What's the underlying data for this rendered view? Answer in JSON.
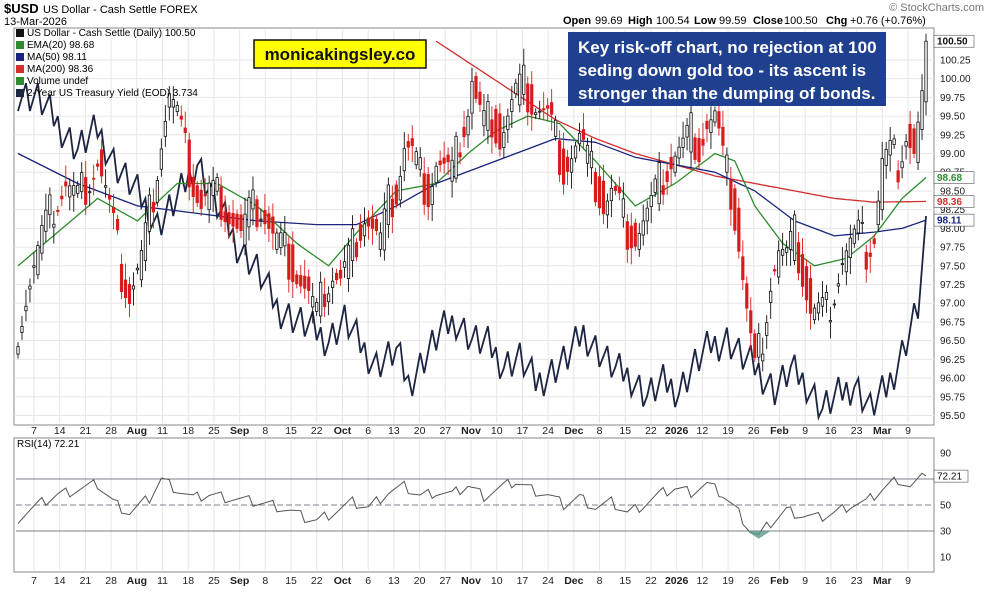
{
  "header": {
    "symbol": "$USD",
    "name": "US Dollar - Cash Settle FOREX",
    "date": "13-Mar-2026",
    "open_label": "Open",
    "open": "99.69",
    "high_label": "High",
    "high": "100.54",
    "low_label": "Low",
    "low": "99.59",
    "close_label": "Close",
    "close": "100.50",
    "chg_label": "Chg",
    "chg": "+0.76 (+0.76%)",
    "watermark": "© StockCharts.com"
  },
  "legend": {
    "price": "US Dollar - Cash Settle (Daily) 100.50",
    "ema20": "EMA(20) 98.68",
    "ma50": "MA(50) 98.11",
    "ma200": "MA(200) 98.36",
    "volume": "Volume undef",
    "yield": "2-Year US Treasury Yield (EOD) 3.734",
    "rsi": "RSI(14) 72.21"
  },
  "annotation": {
    "brand": "monicakingsley.co",
    "lines": [
      "Key risk-off chart, no rejection at 100",
      "seding down gold too - its ascent is",
      "stronger than the dumping of bonds."
    ]
  },
  "colors": {
    "up": "#111111",
    "down": "#d81b1b",
    "ema20": "#2e8b2e",
    "ma50": "#1a237e",
    "ma200": "#d32f2f",
    "yield": "#1c2541",
    "rsi": "#555555",
    "brand_bg": "#ffff00",
    "annotation_bg": "#1f3f8f",
    "grid": "#e6e6e6"
  },
  "chart_data": [
    {
      "type": "candlestick",
      "title": "$USD US Dollar - Cash Settle FOREX",
      "ylim": [
        95.4,
        100.65
      ],
      "yticks": [
        "95.50",
        "95.75",
        "96.00",
        "96.25",
        "96.50",
        "96.75",
        "97.00",
        "97.25",
        "97.50",
        "97.75",
        "98.00",
        "98.25",
        "98.50",
        "98.75",
        "99.00",
        "99.25",
        "99.50",
        "99.75",
        "100.00",
        "100.25"
      ],
      "xticks": [
        "7",
        "14",
        "21",
        "28",
        "Aug",
        "11",
        "18",
        "25",
        "Sep",
        "8",
        "15",
        "22",
        "Oct",
        "6",
        "13",
        "20",
        "27",
        "Nov",
        "10",
        "17",
        "24",
        "Dec",
        "8",
        "15",
        "22",
        "2026",
        "12",
        "19",
        "26",
        "Feb",
        "9",
        "16",
        "23",
        "Mar",
        "9"
      ],
      "price_points": [
        [
          0,
          96.7
        ],
        [
          3,
          97.3
        ],
        [
          6,
          97.9
        ],
        [
          9,
          98.3
        ],
        [
          12,
          98.6
        ],
        [
          15,
          98.4
        ],
        [
          18,
          98.7
        ],
        [
          20,
          98.9
        ],
        [
          22,
          98.5
        ],
        [
          24,
          98.0
        ],
        [
          26,
          97.4
        ],
        [
          28,
          97.1
        ],
        [
          31,
          97.6
        ],
        [
          34,
          98.5
        ],
        [
          36,
          99.2
        ],
        [
          38,
          99.8
        ],
        [
          40,
          99.5
        ],
        [
          42,
          99.0
        ],
        [
          44,
          98.6
        ],
        [
          46,
          98.3
        ],
        [
          48,
          98.5
        ],
        [
          51,
          98.4
        ],
        [
          54,
          98.1
        ],
        [
          56,
          97.9
        ],
        [
          58,
          98.2
        ],
        [
          61,
          98.3
        ],
        [
          64,
          97.9
        ],
        [
          67,
          97.7
        ],
        [
          69,
          97.5
        ],
        [
          71,
          97.3
        ],
        [
          73,
          97.1
        ],
        [
          75,
          96.8
        ],
        [
          77,
          97.2
        ],
        [
          79,
          97.4
        ],
        [
          81,
          97.3
        ],
        [
          83,
          97.6
        ],
        [
          85,
          97.9
        ],
        [
          87,
          98.2
        ],
        [
          89,
          98.0
        ],
        [
          91,
          97.8
        ],
        [
          93,
          98.3
        ],
        [
          95,
          98.5
        ],
        [
          97,
          99.1
        ],
        [
          99,
          99.0
        ],
        [
          101,
          98.7
        ],
        [
          103,
          98.5
        ],
        [
          105,
          98.9
        ],
        [
          107,
          98.8
        ],
        [
          109,
          98.7
        ],
        [
          111,
          99.2
        ],
        [
          113,
          99.6
        ],
        [
          114,
          100.0
        ],
        [
          115,
          99.7
        ],
        [
          117,
          99.4
        ],
        [
          119,
          99.5
        ],
        [
          121,
          99.2
        ],
        [
          123,
          99.5
        ],
        [
          125,
          99.8
        ],
        [
          127,
          99.9
        ],
        [
          129,
          99.7
        ],
        [
          131,
          99.6
        ],
        [
          133,
          99.5
        ],
        [
          135,
          99.2
        ],
        [
          137,
          98.8
        ],
        [
          139,
          99.0
        ],
        [
          141,
          99.2
        ],
        [
          143,
          98.9
        ],
        [
          145,
          98.6
        ],
        [
          147,
          98.3
        ],
        [
          149,
          98.5
        ],
        [
          151,
          98.3
        ],
        [
          153,
          98.0
        ],
        [
          155,
          97.9
        ],
        [
          157,
          98.1
        ],
        [
          159,
          98.3
        ],
        [
          161,
          98.6
        ],
        [
          163,
          98.8
        ],
        [
          165,
          99.0
        ],
        [
          167,
          99.1
        ],
        [
          169,
          99.3
        ],
        [
          171,
          99.1
        ],
        [
          173,
          99.4
        ],
        [
          175,
          99.5
        ],
        [
          177,
          98.9
        ],
        [
          179,
          98.5
        ],
        [
          181,
          97.8
        ],
        [
          183,
          96.9
        ],
        [
          185,
          96.1
        ],
        [
          187,
          96.6
        ],
        [
          189,
          97.3
        ],
        [
          191,
          97.7
        ],
        [
          193,
          97.6
        ],
        [
          195,
          97.9
        ],
        [
          197,
          97.4
        ],
        [
          199,
          96.9
        ],
        [
          201,
          96.9
        ],
        [
          203,
          96.9
        ],
        [
          205,
          97.2
        ],
        [
          207,
          97.6
        ],
        [
          209,
          97.8
        ],
        [
          211,
          97.9
        ],
        [
          213,
          97.7
        ],
        [
          215,
          97.9
        ],
        [
          217,
          98.9
        ],
        [
          219,
          99.0
        ],
        [
          221,
          98.9
        ],
        [
          223,
          99.3
        ],
        [
          225,
          99.0
        ],
        [
          227,
          99.7
        ],
        [
          228,
          100.5
        ]
      ],
      "ema20": [
        [
          0,
          97.5
        ],
        [
          20,
          98.4
        ],
        [
          30,
          98.1
        ],
        [
          40,
          98.6
        ],
        [
          50,
          98.6
        ],
        [
          60,
          98.3
        ],
        [
          70,
          97.8
        ],
        [
          78,
          97.5
        ],
        [
          86,
          98.0
        ],
        [
          95,
          98.5
        ],
        [
          105,
          98.6
        ],
        [
          113,
          99.0
        ],
        [
          120,
          99.3
        ],
        [
          128,
          99.5
        ],
        [
          136,
          99.4
        ],
        [
          145,
          98.9
        ],
        [
          155,
          98.3
        ],
        [
          165,
          98.6
        ],
        [
          175,
          99.0
        ],
        [
          180,
          98.9
        ],
        [
          185,
          98.3
        ],
        [
          192,
          97.8
        ],
        [
          200,
          97.5
        ],
        [
          208,
          97.6
        ],
        [
          215,
          97.9
        ],
        [
          222,
          98.4
        ],
        [
          228,
          98.68
        ]
      ],
      "ma50": [
        [
          0,
          99.0
        ],
        [
          15,
          98.6
        ],
        [
          30,
          98.3
        ],
        [
          45,
          98.2
        ],
        [
          60,
          98.1
        ],
        [
          75,
          98.05
        ],
        [
          85,
          98.05
        ],
        [
          95,
          98.3
        ],
        [
          105,
          98.6
        ],
        [
          115,
          98.8
        ],
        [
          125,
          99.0
        ],
        [
          135,
          99.2
        ],
        [
          145,
          99.15
        ],
        [
          155,
          98.95
        ],
        [
          165,
          98.85
        ],
        [
          175,
          98.75
        ],
        [
          185,
          98.5
        ],
        [
          195,
          98.1
        ],
        [
          205,
          97.9
        ],
        [
          215,
          97.95
        ],
        [
          222,
          98.0
        ],
        [
          228,
          98.11
        ]
      ],
      "ma200": [
        [
          105,
          100.5
        ],
        [
          115,
          100.15
        ],
        [
          125,
          99.8
        ],
        [
          135,
          99.45
        ],
        [
          145,
          99.2
        ],
        [
          155,
          99.0
        ],
        [
          165,
          98.85
        ],
        [
          175,
          98.7
        ],
        [
          185,
          98.6
        ],
        [
          195,
          98.5
        ],
        [
          205,
          98.4
        ],
        [
          215,
          98.35
        ],
        [
          228,
          98.36
        ]
      ],
      "yield": [
        [
          0,
          3.96
        ],
        [
          5,
          3.95
        ],
        [
          10,
          3.91
        ],
        [
          15,
          3.87
        ],
        [
          20,
          3.9
        ],
        [
          25,
          3.84
        ],
        [
          30,
          3.8
        ],
        [
          35,
          3.75
        ],
        [
          40,
          3.79
        ],
        [
          45,
          3.85
        ],
        [
          50,
          3.78
        ],
        [
          55,
          3.72
        ],
        [
          60,
          3.68
        ],
        [
          65,
          3.62
        ],
        [
          70,
          3.6
        ],
        [
          75,
          3.58
        ],
        [
          78,
          3.57
        ],
        [
          82,
          3.6
        ],
        [
          86,
          3.56
        ],
        [
          90,
          3.53
        ],
        [
          95,
          3.55
        ],
        [
          98,
          3.5
        ],
        [
          102,
          3.54
        ],
        [
          106,
          3.58
        ],
        [
          110,
          3.6
        ],
        [
          114,
          3.57
        ],
        [
          118,
          3.56
        ],
        [
          122,
          3.53
        ],
        [
          126,
          3.54
        ],
        [
          130,
          3.5
        ],
        [
          134,
          3.52
        ],
        [
          138,
          3.54
        ],
        [
          142,
          3.58
        ],
        [
          146,
          3.55
        ],
        [
          150,
          3.52
        ],
        [
          154,
          3.51
        ],
        [
          158,
          3.48
        ],
        [
          162,
          3.5
        ],
        [
          166,
          3.49
        ],
        [
          170,
          3.53
        ],
        [
          174,
          3.56
        ],
        [
          178,
          3.57
        ],
        [
          182,
          3.54
        ],
        [
          186,
          3.52
        ],
        [
          190,
          3.49
        ],
        [
          194,
          3.52
        ],
        [
          198,
          3.5
        ],
        [
          202,
          3.46
        ],
        [
          206,
          3.48
        ],
        [
          210,
          3.5
        ],
        [
          214,
          3.46
        ],
        [
          218,
          3.49
        ],
        [
          222,
          3.55
        ],
        [
          226,
          3.62
        ],
        [
          228,
          3.734
        ]
      ],
      "yield_note": "secondary scale, not labelled"
    },
    {
      "type": "line",
      "title": "RSI(14) 72.21",
      "ylim": [
        0,
        100
      ],
      "yticks": [
        "10",
        "30",
        "50",
        "70",
        "90"
      ],
      "reference_lines": [
        30,
        50,
        70
      ],
      "points": [
        [
          0,
          40
        ],
        [
          5,
          50
        ],
        [
          10,
          58
        ],
        [
          15,
          62
        ],
        [
          20,
          66
        ],
        [
          24,
          52
        ],
        [
          28,
          44
        ],
        [
          33,
          55
        ],
        [
          36,
          70
        ],
        [
          40,
          62
        ],
        [
          44,
          55
        ],
        [
          48,
          58
        ],
        [
          52,
          56
        ],
        [
          56,
          54
        ],
        [
          60,
          52
        ],
        [
          64,
          50
        ],
        [
          68,
          46
        ],
        [
          72,
          40
        ],
        [
          75,
          38
        ],
        [
          79,
          44
        ],
        [
          84,
          52
        ],
        [
          88,
          48
        ],
        [
          93,
          60
        ],
        [
          97,
          64
        ],
        [
          101,
          57
        ],
        [
          105,
          60
        ],
        [
          109,
          58
        ],
        [
          113,
          65
        ],
        [
          117,
          57
        ],
        [
          121,
          63
        ],
        [
          125,
          68
        ],
        [
          129,
          62
        ],
        [
          133,
          58
        ],
        [
          137,
          50
        ],
        [
          141,
          56
        ],
        [
          145,
          48
        ],
        [
          149,
          52
        ],
        [
          153,
          44
        ],
        [
          157,
          50
        ],
        [
          161,
          58
        ],
        [
          165,
          63
        ],
        [
          169,
          60
        ],
        [
          173,
          66
        ],
        [
          177,
          58
        ],
        [
          181,
          44
        ],
        [
          184,
          30
        ],
        [
          186,
          26
        ],
        [
          189,
          36
        ],
        [
          193,
          46
        ],
        [
          197,
          42
        ],
        [
          201,
          40
        ],
        [
          205,
          44
        ],
        [
          209,
          50
        ],
        [
          213,
          52
        ],
        [
          217,
          62
        ],
        [
          221,
          70
        ],
        [
          224,
          64
        ],
        [
          228,
          72.21
        ]
      ]
    }
  ]
}
